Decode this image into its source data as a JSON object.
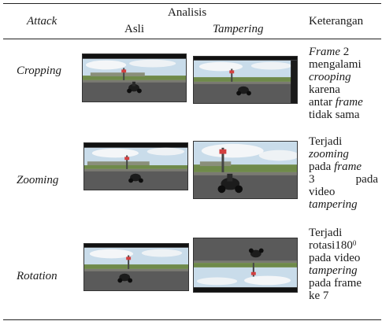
{
  "header": {
    "attack": "Attack",
    "analisis": "Analisis",
    "asli": "Asli",
    "tampering": "Tampering",
    "keterangan": "Keterangan"
  },
  "rows": [
    {
      "attack": "Cropping",
      "desc": [
        [
          {
            "t": "Frame",
            "i": true
          },
          {
            "t": " 2",
            "i": false
          }
        ],
        [
          {
            "t": "mengalami",
            "i": false
          }
        ],
        [
          {
            "t": "crooping",
            "i": true
          }
        ],
        [
          {
            "t": "karena",
            "i": false
          }
        ],
        [
          {
            "t": "antar ",
            "i": false
          },
          {
            "t": "frame",
            "i": true
          }
        ],
        [
          {
            "t": "tidak sama",
            "i": false
          }
        ]
      ]
    },
    {
      "attack": "Zooming",
      "desc": [
        [
          {
            "t": "Terjadi",
            "i": false
          }
        ],
        [
          {
            "t": "zooming",
            "i": true
          }
        ],
        [
          {
            "t": "pada ",
            "i": false
          },
          {
            "t": "frame",
            "i": true
          }
        ],
        [
          {
            "t": "3",
            "i": false
          },
          {
            "t": "pada",
            "i": false
          }
        ],
        [
          {
            "t": "video",
            "i": false
          }
        ],
        [
          {
            "t": "tampering",
            "i": true
          }
        ]
      ]
    },
    {
      "attack": "Rotation",
      "desc": [
        [
          {
            "t": "Terjadi",
            "i": false
          }
        ],
        [
          {
            "t": "rotasi180",
            "i": false
          },
          {
            "t": "0",
            "sup": true
          }
        ],
        [
          {
            "t": "pada video",
            "i": false
          }
        ],
        [
          {
            "t": "tampering",
            "i": true
          }
        ],
        [
          {
            "t": "pada frame",
            "i": false
          }
        ],
        [
          {
            "t": "ke 7",
            "i": false
          }
        ]
      ]
    }
  ],
  "colors": {
    "sky": "#c9dcea",
    "cloud": "#f4f6f8",
    "road": "#5a5a5a",
    "grass": "#6f8a4a",
    "bar": "#111111"
  }
}
